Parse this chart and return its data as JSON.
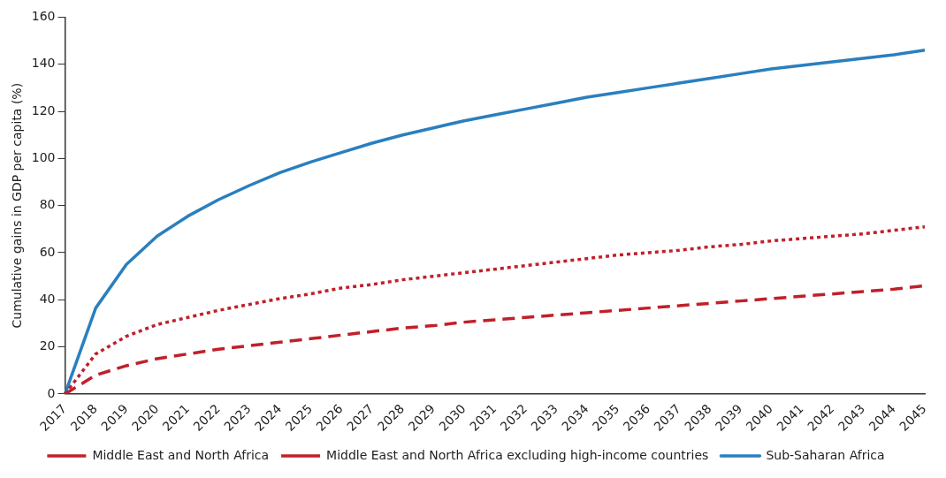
{
  "chart_data": {
    "type": "line",
    "ylabel": "Cumulative gains in GDP per capita (%)",
    "categories": [
      "2017",
      "2018",
      "2019",
      "2020",
      "2021",
      "2022",
      "2023",
      "2024",
      "2025",
      "2026",
      "2027",
      "2028",
      "2029",
      "2030",
      "2031",
      "2032",
      "2033",
      "2034",
      "2035",
      "2036",
      "2037",
      "2038",
      "2039",
      "2040",
      "2041",
      "2042",
      "2043",
      "2044",
      "2045"
    ],
    "series": [
      {
        "name": "Middle East and North Africa",
        "color": "#c0202a",
        "line_style": "dashed",
        "values": [
          0,
          8,
          12,
          15,
          17,
          19,
          20.5,
          22,
          23.5,
          25,
          26.5,
          28,
          29,
          30.5,
          31.5,
          32.5,
          33.5,
          34.5,
          35.5,
          36.5,
          37.5,
          38.5,
          39.5,
          40.5,
          41.5,
          42.5,
          43.5,
          44.5,
          46
        ]
      },
      {
        "name": "Middle East and North Africa excluding high-income countries",
        "color": "#c0202a",
        "line_style": "dotted",
        "values": [
          0,
          17,
          24.5,
          29.5,
          32.5,
          35.5,
          38,
          40.5,
          42.5,
          45,
          46.5,
          48.5,
          50,
          51.5,
          53,
          54.5,
          56,
          57.5,
          59,
          60,
          61,
          62.5,
          63.5,
          65,
          66,
          67,
          68,
          69.5,
          71
        ]
      },
      {
        "name": "Sub-Saharan Africa",
        "color": "#2a7fbf",
        "line_style": "solid",
        "values": [
          0,
          36.5,
          55,
          67,
          75.5,
          82.5,
          88.5,
          94,
          98.5,
          102.5,
          106.5,
          110,
          113,
          116,
          118.5,
          121,
          123.5,
          126,
          128,
          130,
          132,
          134,
          136,
          138,
          139.5,
          141,
          142.5,
          144,
          146
        ]
      }
    ],
    "ylim": [
      0,
      160
    ],
    "yticks": [
      0,
      20,
      40,
      60,
      80,
      100,
      120,
      140,
      160
    ],
    "grid": false,
    "legend": "bottom",
    "marker": "none"
  }
}
